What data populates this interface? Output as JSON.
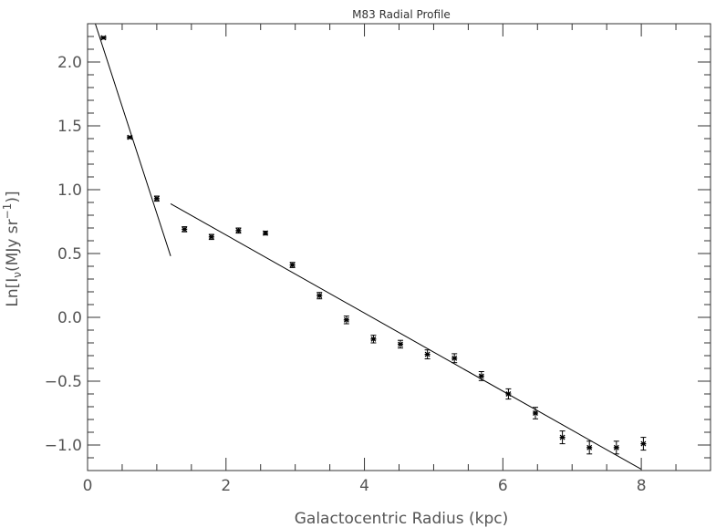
{
  "chart_data": {
    "type": "scatter",
    "title": "M83 Radial Profile",
    "xlabel": "Galactocentric Radius (kpc)",
    "ylabel": {
      "prefix": "Ln[I",
      "sub": "ν",
      "middle": "(MJy sr",
      "sup": "−1",
      "suffix": ")]"
    },
    "xlim": [
      0,
      9
    ],
    "ylim": [
      -1.2,
      2.3
    ],
    "xticks": [
      0,
      2,
      4,
      6,
      8
    ],
    "xtick_labels": [
      "0",
      "2",
      "4",
      "6",
      "8"
    ],
    "x_minor_step": 0.5,
    "yticks": [
      -1.0,
      -0.5,
      0.0,
      0.5,
      1.0,
      1.5,
      2.0
    ],
    "ytick_labels": [
      "−1.0",
      "−0.5",
      "0.0",
      "0.5",
      "1.0",
      "1.5",
      "2.0"
    ],
    "y_minor_step": 0.1,
    "grid": false,
    "series": [
      {
        "points": [
          {
            "x": 0.23,
            "y": 2.19,
            "err": 0.01
          },
          {
            "x": 0.61,
            "y": 1.41,
            "err": 0.01
          },
          {
            "x": 1.0,
            "y": 0.93,
            "err": 0.02
          },
          {
            "x": 1.4,
            "y": 0.69,
            "err": 0.02
          },
          {
            "x": 1.79,
            "y": 0.63,
            "err": 0.02
          },
          {
            "x": 2.18,
            "y": 0.68,
            "err": 0.02
          },
          {
            "x": 2.57,
            "y": 0.66,
            "err": 0.015
          },
          {
            "x": 2.96,
            "y": 0.41,
            "err": 0.02
          },
          {
            "x": 3.35,
            "y": 0.17,
            "err": 0.025
          },
          {
            "x": 3.74,
            "y": -0.02,
            "err": 0.03
          },
          {
            "x": 4.13,
            "y": -0.17,
            "err": 0.03
          },
          {
            "x": 4.52,
            "y": -0.21,
            "err": 0.03
          },
          {
            "x": 4.91,
            "y": -0.29,
            "err": 0.035
          },
          {
            "x": 5.3,
            "y": -0.32,
            "err": 0.035
          },
          {
            "x": 5.69,
            "y": -0.46,
            "err": 0.035
          },
          {
            "x": 6.08,
            "y": -0.6,
            "err": 0.04
          },
          {
            "x": 6.47,
            "y": -0.75,
            "err": 0.045
          },
          {
            "x": 6.86,
            "y": -0.94,
            "err": 0.05
          },
          {
            "x": 7.25,
            "y": -1.02,
            "err": 0.05
          },
          {
            "x": 7.64,
            "y": -1.02,
            "err": 0.05
          },
          {
            "x": 8.03,
            "y": -0.99,
            "err": 0.05
          }
        ]
      }
    ],
    "fit_lines": [
      {
        "x": [
          0.1,
          1.2
        ],
        "y": [
          2.32,
          0.48
        ]
      },
      {
        "x": [
          1.2,
          8.0
        ],
        "y": [
          0.89,
          -1.19
        ]
      }
    ],
    "colors": {
      "axis": "#333333",
      "text": "#555555",
      "data": "#000000",
      "background": "#ffffff"
    }
  }
}
